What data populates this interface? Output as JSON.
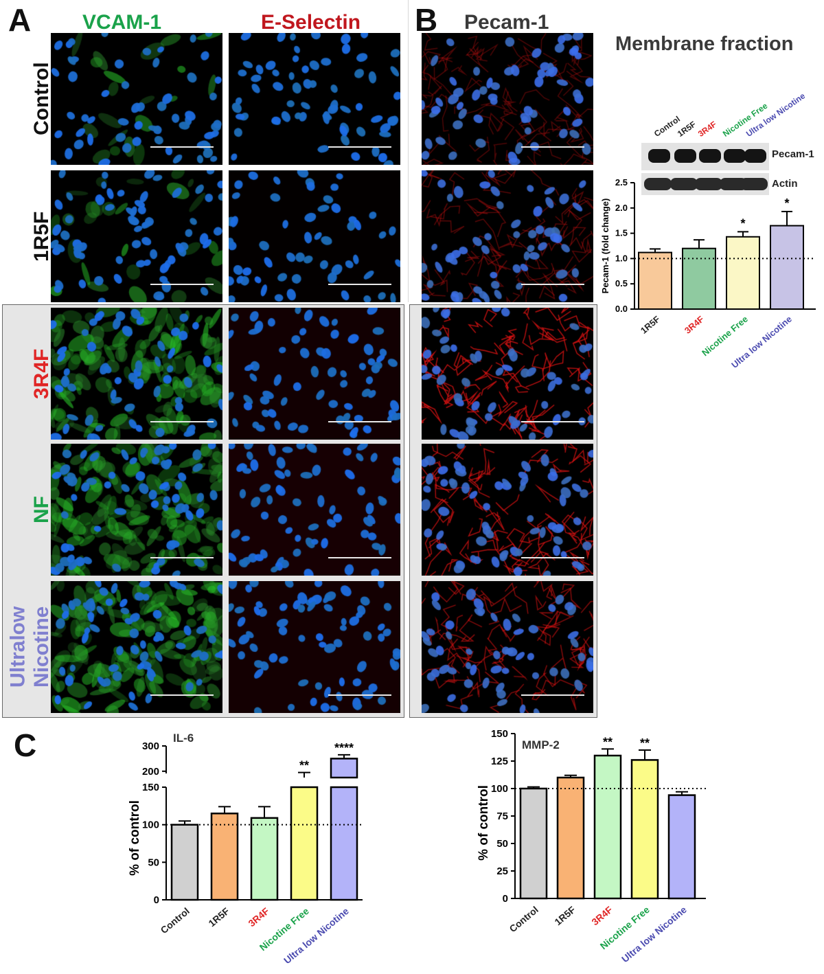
{
  "panels": {
    "a_letter": "A",
    "b_letter": "B",
    "c_letter": "C"
  },
  "panel_a": {
    "columns": [
      {
        "label": "VCAM-1",
        "color": "#1aa24a"
      },
      {
        "label": "E-Selectin",
        "color": "#c0171e"
      }
    ],
    "rows": [
      {
        "label": "Control",
        "color": "#111111"
      },
      {
        "label": "1R5F",
        "color": "#111111"
      },
      {
        "label": "3R4F",
        "color": "#e02525"
      },
      {
        "label": "NF",
        "color": "#1aa24a"
      },
      {
        "label": "Ultralow Nicotine",
        "color": "#7f7fcf"
      }
    ]
  },
  "panel_b": {
    "column_label": "Pecam-1",
    "column_color": "#3a3a3a",
    "membrane_title": "Membrane fraction",
    "blot_lanes": [
      {
        "label": "Control",
        "color": "#222222"
      },
      {
        "label": "1R5F",
        "color": "#222222"
      },
      {
        "label": "3R4F",
        "color": "#e02525"
      },
      {
        "label": "Nicotine Free",
        "color": "#1aa24a"
      },
      {
        "label": "Ultra low Nicotine",
        "color": "#4b4bb0"
      }
    ],
    "blot_rows": [
      "Pecam-1",
      "Actin"
    ]
  },
  "chart_data": [
    {
      "id": "pecam",
      "type": "bar",
      "categories": [
        "1R5F",
        "3R4F",
        "Nicotine Free",
        "Ultra low Nicotine"
      ],
      "category_colors": [
        "#222222",
        "#e02525",
        "#1aa24a",
        "#4b4bb0"
      ],
      "values": [
        1.12,
        1.2,
        1.43,
        1.65
      ],
      "errors": [
        0.07,
        0.17,
        0.1,
        0.28
      ],
      "bar_colors": [
        "#f8c99a",
        "#8fcaa0",
        "#fbf7c6",
        "#c7c3e6"
      ],
      "significance": [
        "",
        "",
        "*",
        "*"
      ],
      "ylabel": "Pecam-1 (fold change)",
      "ylim": [
        0,
        2.5
      ],
      "yticks": [
        "0.0",
        "0.5",
        "1.0",
        "1.5",
        "2.0",
        "2.5"
      ],
      "reference_line": 1.0
    },
    {
      "id": "il6",
      "type": "bar",
      "title": "IL-6",
      "categories": [
        "Control",
        "1R5F",
        "3R4F",
        "Nicotine Free",
        "Ultra low Nicotine"
      ],
      "category_colors": [
        "#222222",
        "#222222",
        "#e02525",
        "#1aa24a",
        "#4b4bb0"
      ],
      "values": [
        100,
        115,
        109,
        175,
        250
      ],
      "errors": [
        5,
        9,
        15,
        20,
        15
      ],
      "bar_colors": [
        "#d0d0d0",
        "#f9b274",
        "#c4f7c4",
        "#fbfb88",
        "#b3b3f9"
      ],
      "significance": [
        "",
        "",
        "",
        "**",
        "****"
      ],
      "ylabel": "% of control",
      "yticks_lower": [
        "0",
        "50",
        "100",
        "150"
      ],
      "yticks_upper": [
        "200",
        "300"
      ],
      "axis_break": [
        150,
        175
      ],
      "reference_line": 100
    },
    {
      "id": "mmp2",
      "type": "bar",
      "title": "MMP-2",
      "categories": [
        "Control",
        "1R5F",
        "3R4F",
        "Nicotine Free",
        "Ultra low Nicotine"
      ],
      "category_colors": [
        "#222222",
        "#222222",
        "#e02525",
        "#1aa24a",
        "#4b4bb0"
      ],
      "values": [
        100,
        110,
        130,
        126,
        94
      ],
      "errors": [
        1.5,
        2,
        6,
        9,
        3
      ],
      "bar_colors": [
        "#d0d0d0",
        "#f9b274",
        "#c4f7c4",
        "#fbfb88",
        "#b3b3f9"
      ],
      "significance": [
        "",
        "",
        "**",
        "**",
        ""
      ],
      "ylabel": "% of control",
      "ylim": [
        0,
        150
      ],
      "yticks": [
        "0",
        "25",
        "50",
        "75",
        "100",
        "125",
        "150"
      ],
      "reference_line": 100
    }
  ]
}
